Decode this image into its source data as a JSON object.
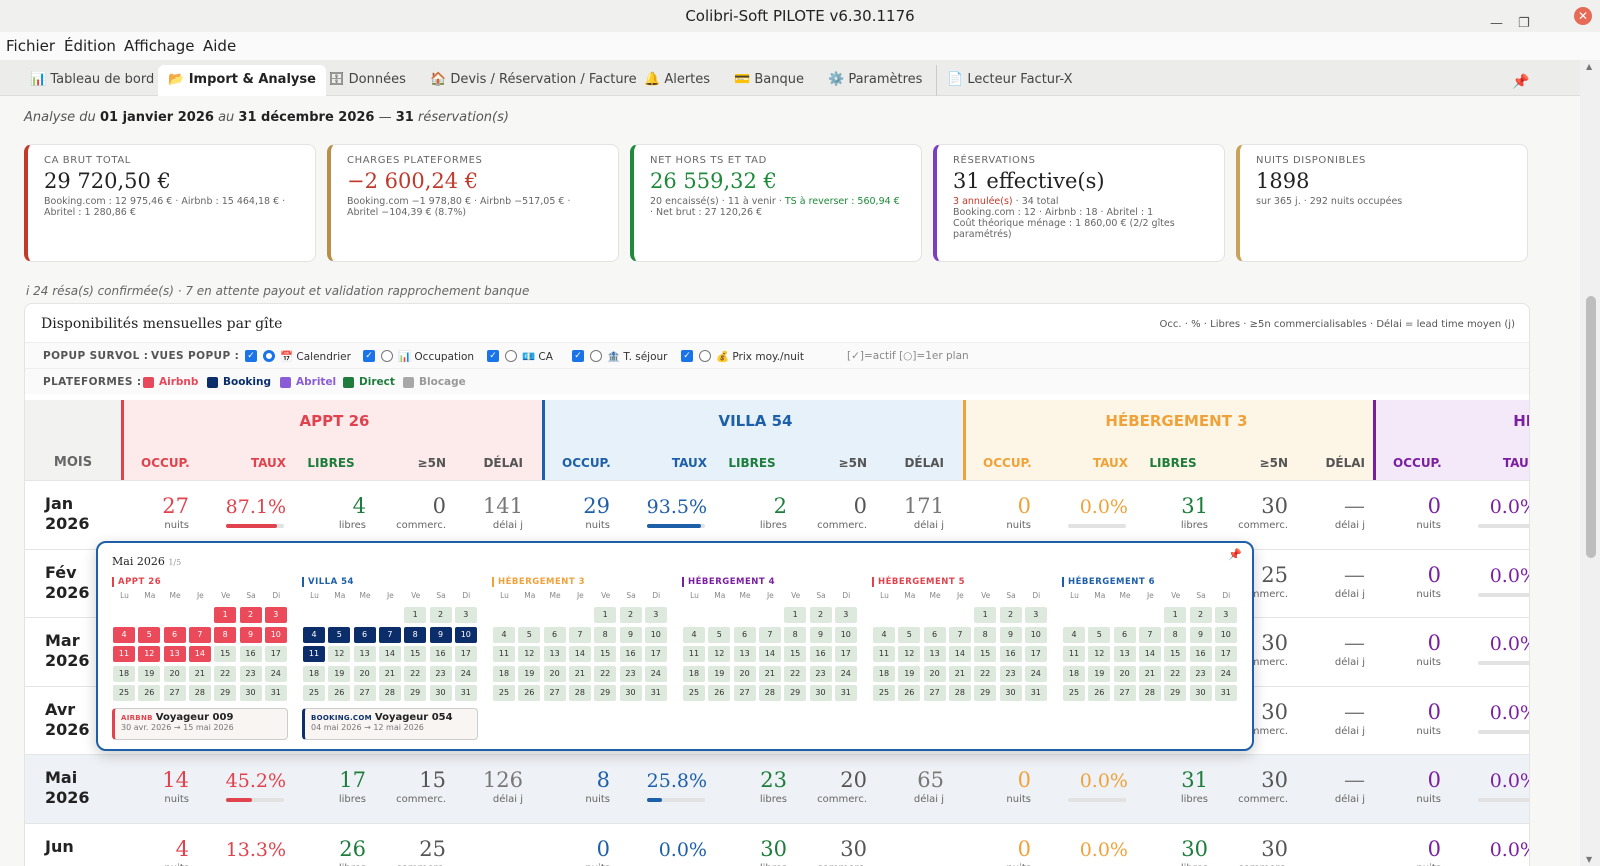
{
  "window": {
    "title": "Colibri-Soft PILOTE v6.30.1176"
  },
  "menu": [
    "Fichier",
    "Édition",
    "Affichage",
    "Aide"
  ],
  "tabs": [
    {
      "label": "Tableau de bord",
      "icon": "chart-icon"
    },
    {
      "label": "Import & Analyse",
      "icon": "folder-icon",
      "active": true
    },
    {
      "label": "Données",
      "icon": "cabinet-icon"
    },
    {
      "label": "Devis / Réservation / Facture",
      "icon": "house-icon"
    },
    {
      "label": "Alertes",
      "icon": "bell-icon"
    },
    {
      "label": "Banque",
      "icon": "card-icon"
    },
    {
      "label": "Paramètres",
      "icon": "gear-icon"
    },
    {
      "label": "Lecteur Factur-X",
      "icon": "document-icon"
    }
  ],
  "analysis": {
    "prefix": "Analyse du",
    "start": "01 janvier 2026",
    "mid": "au",
    "end": "31 décembre 2026",
    "sep": "—",
    "count": "31",
    "suffix": "réservation(s)"
  },
  "kpis": [
    {
      "label": "CA BRUT TOTAL",
      "value": "29 720,50 €",
      "sub": "Booking.com : 12 975,46 € · Airbnb : 15 464,18 € · Abritel : 1 280,86 €",
      "color": "#c0392b"
    },
    {
      "label": "CHARGES PLATEFORMES",
      "value": "−2 600,24 €",
      "sub": "Booking.com −1 978,80 € · Airbnb −517,05 € · Abritel −104,39 € (8.7%)",
      "color": "#b8904a"
    },
    {
      "label": "NET HORS TS ET TAD",
      "value": "26 559,32 €",
      "sub_a": "20 encaissé(s) · 11 à venir · ",
      "sub_b": "TS à reverser : 560,94 €",
      "sub_c": " · Net brut : 27 120,26 €",
      "color": "#1e8a3a"
    },
    {
      "label": "RÉSERVATIONS",
      "value": "31 effective(s)",
      "sub_red": "3 annulée(s)",
      "sub_a": " · 34 total",
      "sub_b": "Booking.com : 12 · Airbnb : 18 · Abritel : 1",
      "sub_c": "Coût théorique ménage : 1 860,00 € (2/2 gîtes paramétrés)",
      "color": "#7b3fbf"
    },
    {
      "label": "NUITS DISPONIBLES",
      "value": "1898",
      "sub": "sur 365 j. · 292 nuits occupées",
      "color": "#c9a25a"
    }
  ],
  "note": "i 24 résa(s) confirmée(s) · 7 en attente payout et validation rapprochement banque",
  "panel": {
    "title": "Disponibilités mensuelles par gîte",
    "legend": "Occ. · % · Libres · ≥5n commercialisables · Délai = lead time moyen (j)",
    "popup_label": "POPUP SURVOL :",
    "views_label": "VUES POPUP :",
    "views": [
      "📅 Calendrier",
      "📊 Occupation",
      "💶 CA",
      "🏦 T. séjour",
      "💰 Prix moy./nuit"
    ],
    "views_hint": "[✓]=actif  [○]=1er plan",
    "platforms_label": "PLATEFORMES :",
    "platforms": [
      {
        "name": "Airbnb",
        "color": "#e8485b"
      },
      {
        "name": "Booking",
        "color": "#0b2e6b"
      },
      {
        "name": "Abritel",
        "color": "#8a5cd6"
      },
      {
        "name": "Direct",
        "color": "#1e7d3c"
      },
      {
        "name": "Blocage",
        "color": "#a8a8a8"
      }
    ]
  },
  "table": {
    "mois_header": "MOIS",
    "col_headers": [
      "OCCUP.",
      "TAUX",
      "LIBRES",
      "≥5N",
      "DÉLAI"
    ],
    "units": {
      "nuits": "nuits",
      "libres": "libres",
      "commerc": "commerc.",
      "delai": "délai j"
    },
    "gites": [
      {
        "name": "APPT 26",
        "color": "#e0434d"
      },
      {
        "name": "VILLA 54",
        "color": "#1d5fa8"
      },
      {
        "name": "HÉBERGEMENT 3",
        "color": "#f0a23a"
      },
      {
        "name": "HÉ",
        "color": "#7b1fa2"
      }
    ],
    "rows": [
      {
        "month": "Jan",
        "year": "2026",
        "g": [
          {
            "occ": "27",
            "taux": "87.1%",
            "fill": 0.871,
            "libres": "4",
            "five": "0",
            "delai": "141"
          },
          {
            "occ": "29",
            "taux": "93.5%",
            "fill": 0.935,
            "libres": "2",
            "five": "0",
            "delai": "171"
          },
          {
            "occ": "0",
            "taux": "0.0%",
            "fill": 0,
            "libres": "31",
            "five": "30",
            "delai": "—"
          },
          {
            "occ": "0",
            "taux": "0.0%",
            "fill": 0
          }
        ]
      },
      {
        "month": "Fév",
        "year": "2026",
        "g": [
          {},
          {},
          {
            "five": "25",
            "delai": "—"
          },
          {
            "occ": "0",
            "taux": "0.0%",
            "fill": 0
          }
        ]
      },
      {
        "month": "Mar",
        "year": "2026",
        "g": [
          {},
          {},
          {
            "five": "30",
            "delai": "—"
          },
          {
            "occ": "0",
            "taux": "0.0%",
            "fill": 0
          }
        ]
      },
      {
        "month": "Avr",
        "year": "2026",
        "g": [
          {},
          {},
          {
            "five": "30",
            "delai": "—"
          },
          {
            "occ": "0",
            "taux": "0.0%",
            "fill": 0
          }
        ]
      },
      {
        "month": "Mai",
        "year": "2026",
        "g": [
          {
            "occ": "14",
            "taux": "45.2%",
            "fill": 0.452,
            "libres": "17",
            "five": "15",
            "delai": "126"
          },
          {
            "occ": "8",
            "taux": "25.8%",
            "fill": 0.258,
            "libres": "23",
            "five": "20",
            "delai": "65"
          },
          {
            "occ": "0",
            "taux": "0.0%",
            "fill": 0,
            "libres": "31",
            "five": "30",
            "delai": "—"
          },
          {
            "occ": "0",
            "taux": "0.0%",
            "fill": 0
          }
        ]
      },
      {
        "month": "Jun",
        "year": "",
        "g": [
          {
            "occ": "4",
            "taux": "13.3%",
            "fill": 0.133,
            "libres": "26",
            "five": "25",
            "delai": ""
          },
          {
            "occ": "0",
            "taux": "0.0%",
            "fill": 0,
            "libres": "30",
            "five": "30",
            "delai": ""
          },
          {
            "occ": "0",
            "taux": "0.0%",
            "fill": 0,
            "libres": "30",
            "five": "30",
            "delai": ""
          },
          {
            "occ": "0",
            "taux": "0.0%",
            "fill": 0
          }
        ]
      }
    ]
  },
  "popup": {
    "title": "Mai 2026",
    "page": "1/5",
    "dow": [
      "Lu",
      "Ma",
      "Me",
      "Je",
      "Ve",
      "Sa",
      "Di"
    ],
    "first_weekday": 4,
    "days": 31,
    "calendars": [
      {
        "name": "APPT 26",
        "color": "#e0434d",
        "airbnb_days": [
          1,
          2,
          3,
          4,
          5,
          6,
          7,
          8,
          9,
          10,
          11,
          12,
          13,
          14
        ],
        "booking_days": []
      },
      {
        "name": "VILLA 54",
        "color": "#1d5fa8",
        "airbnb_days": [],
        "booking_days": [
          4,
          5,
          6,
          7,
          8,
          9,
          10,
          11
        ]
      },
      {
        "name": "HÉBERGEMENT 3",
        "color": "#f0a23a",
        "airbnb_days": [],
        "booking_days": []
      },
      {
        "name": "HÉBERGEMENT 4",
        "color": "#7b1fa2",
        "airbnb_days": [],
        "booking_days": []
      },
      {
        "name": "HÉBERGEMENT 5",
        "color": "#e0434d",
        "airbnb_days": [],
        "booking_days": []
      },
      {
        "name": "HÉBERGEMENT 6",
        "color": "#1d5fa8",
        "airbnb_days": [],
        "booking_days": []
      }
    ],
    "reservations": [
      {
        "platform": "AIRBNB",
        "guest": "Voyageur 009",
        "dates": "30 avr. 2026 → 15 mai 2026",
        "color": "#e0434d"
      },
      {
        "platform": "BOOKING.COM",
        "guest": "Voyageur 054",
        "dates": "04 mai 2026 → 12 mai 2026",
        "color": "#0b2e6b"
      }
    ]
  }
}
